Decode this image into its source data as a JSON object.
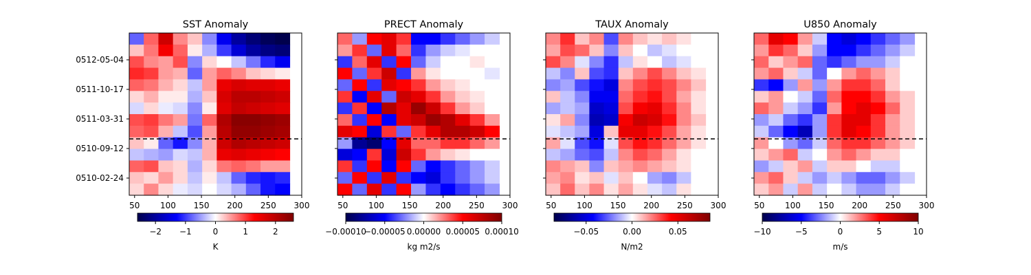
{
  "chart_data": {
    "type": "heatmap",
    "shared_y": {
      "ticks": [
        "0512-05-04",
        "0511-10-17",
        "0511-03-31",
        "0510-09-12",
        "0510-02-24"
      ],
      "reference_line_style": "dashed black"
    },
    "panels": [
      {
        "id": "sst",
        "title": "SST Anomaly",
        "xlim": [
          42,
          300
        ],
        "x_ticks": [
          50,
          100,
          150,
          200,
          250,
          300
        ],
        "data_extent_x": [
          42,
          282
        ],
        "colormap": "seismic",
        "vmin": -2.6,
        "vmax": 2.6,
        "colorbar_ticks": [
          -2,
          -1,
          0,
          1,
          2
        ],
        "colorbar_tick_labels": [
          "−2",
          "−1",
          "0",
          "1",
          "2"
        ],
        "colorbar_label": "K",
        "rows": [
          [
            -0.8,
            0.8,
            1.8,
            0.6,
            0.3,
            -0.6,
            -1.4,
            -2,
            -2.3,
            -2.5,
            -2.6
          ],
          [
            0.3,
            0.7,
            1.4,
            0.8,
            0.1,
            -0.4,
            -1,
            -1.6,
            -2,
            -2.2,
            -2.3
          ],
          [
            0.9,
            0.6,
            0.5,
            0.9,
            -0.6,
            0.2,
            0,
            -0.3,
            -0.7,
            -1.1,
            -1.4
          ],
          [
            1.1,
            1,
            0.5,
            0.4,
            -0.8,
            0.5,
            0.8,
            0.6,
            0.3,
            0.2,
            0.1
          ],
          [
            0.8,
            0.7,
            0.4,
            0.2,
            -0.3,
            0.5,
            1.5,
            1.7,
            1.6,
            1.6,
            1.5
          ],
          [
            0.2,
            0.4,
            0.1,
            0.1,
            -0.4,
            0.3,
            1.7,
            2,
            2,
            1.9,
            1.8
          ],
          [
            -0.2,
            0.2,
            -0.1,
            -0.2,
            -0.6,
            0.1,
            1.6,
            1.9,
            1.8,
            1.7,
            1.6
          ],
          [
            0.9,
            1,
            0.7,
            0.5,
            -0.7,
            0.8,
            2.1,
            2.5,
            2.5,
            2.4,
            2.3
          ],
          [
            0.8,
            0.9,
            0.4,
            -0.3,
            -0.9,
            0.5,
            2,
            2.4,
            2.4,
            2.3,
            2.2
          ],
          [
            0.3,
            0.1,
            -0.8,
            -1.2,
            -0.6,
            0.4,
            1.8,
            2.1,
            2,
            1.9,
            1.8
          ],
          [
            -0.3,
            -0.4,
            -0.5,
            -0.2,
            -0.3,
            0.4,
            1.5,
            1.6,
            1.5,
            1.4,
            1.3
          ],
          [
            0.8,
            0.9,
            0.3,
            0.2,
            -0.4,
            0.2,
            0.7,
            0.8,
            0.7,
            0.5,
            0.5
          ],
          [
            0.3,
            0.2,
            0.5,
            0.2,
            -0.3,
            0.1,
            -0.3,
            -0.8,
            -1.1,
            -1.2,
            -1.1
          ],
          [
            0.2,
            0.6,
            0.2,
            -0.1,
            -0.2,
            0,
            -0.2,
            -0.4,
            -0.8,
            -1.2,
            -1.3
          ]
        ]
      },
      {
        "id": "prect",
        "title": "PRECT Anomaly",
        "xlim": [
          42,
          300
        ],
        "x_ticks": [
          50,
          100,
          150,
          200,
          250,
          300
        ],
        "data_extent_x": [
          42,
          284
        ],
        "colormap": "seismic",
        "vmin": -0.0001,
        "vmax": 0.0001,
        "colorbar_ticks": [
          -0.0001,
          -5e-05,
          0,
          5e-05,
          0.0001
        ],
        "colorbar_tick_labels": [
          "−0.00010",
          "−0.00005",
          "0.00000",
          "0.00005",
          "0.00010"
        ],
        "colorbar_label": "kg m2/s",
        "rows": [
          [
            3e-05,
            -2e-05,
            5e-05,
            6e-05,
            4e-05,
            -5e-05,
            -5e-05,
            -4e-05,
            -3e-05,
            -2e-05,
            -1e-05
          ],
          [
            2e-05,
            4e-05,
            -3e-05,
            6e-05,
            3e-05,
            -4e-05,
            -2e-05,
            -1e-05,
            -5e-06,
            0,
            0
          ],
          [
            -4e-05,
            3e-05,
            6e-05,
            -4e-05,
            5e-05,
            -3e-05,
            -1e-05,
            0,
            0,
            5e-06,
            0
          ],
          [
            5e-05,
            -3e-05,
            4e-05,
            7e-05,
            -4e-05,
            2e-05,
            5e-06,
            0,
            0,
            0,
            -5e-06
          ],
          [
            -3e-05,
            5e-05,
            -4e-05,
            6e-05,
            5e-05,
            4e-05,
            2e-05,
            1e-05,
            5e-06,
            0,
            0
          ],
          [
            4e-05,
            -5e-05,
            6e-05,
            -3e-05,
            7e-05,
            6e-05,
            4e-05,
            2e-05,
            1e-05,
            5e-06,
            0
          ],
          [
            -4e-05,
            4e-05,
            -5e-05,
            8e-05,
            6e-05,
            9e-05,
            7e-05,
            4e-05,
            2e-05,
            1e-05,
            0
          ],
          [
            3e-05,
            -4e-05,
            5e-05,
            -5e-05,
            6e-05,
            7e-05,
            9e-05,
            8e-05,
            6e-05,
            4e-05,
            2e-05
          ],
          [
            6e-05,
            5e-05,
            -6e-05,
            4e-05,
            -3e-05,
            4e-05,
            6e-05,
            8e-05,
            8e-05,
            7e-05,
            5e-05
          ],
          [
            -2e-05,
            -8e-05,
            -9e-05,
            -5e-05,
            6e-05,
            3e-05,
            3e-05,
            4e-05,
            4e-05,
            3e-05,
            2e-05
          ],
          [
            -6e-05,
            -5e-05,
            4e-05,
            -6e-05,
            7e-05,
            4e-05,
            2e-05,
            1e-05,
            5e-06,
            0,
            0
          ],
          [
            4e-05,
            -4e-05,
            5e-05,
            -5e-05,
            5e-05,
            -3e-05,
            -5e-05,
            -4e-05,
            -3e-05,
            -2e-05,
            -1e-05
          ],
          [
            -3e-05,
            5e-05,
            -4e-05,
            6e-05,
            -4e-05,
            -5e-05,
            -6e-05,
            -4e-05,
            -3e-05,
            -2e-05,
            -1e-05
          ],
          [
            5e-05,
            -3e-05,
            6e-05,
            -4e-05,
            5e-05,
            -2e-05,
            -4e-05,
            -5e-05,
            -4e-05,
            -3e-05,
            -2e-05
          ]
        ]
      },
      {
        "id": "taux",
        "title": "TAUX Anomaly",
        "xlim": [
          42,
          300
        ],
        "x_ticks": [
          50,
          100,
          150,
          200,
          250,
          300
        ],
        "data_extent_x": [
          42,
          281
        ],
        "colormap": "seismic",
        "vmin": -0.085,
        "vmax": 0.085,
        "colorbar_ticks": [
          -0.05,
          0,
          0.05
        ],
        "colorbar_tick_labels": [
          "−0.05",
          "0.00",
          "0.05"
        ],
        "colorbar_label": "N/m2",
        "rows": [
          [
            0.02,
            0.035,
            0.01,
            0.02,
            -0.03,
            0.02,
            0.01,
            0.005,
            0.01,
            0.005,
            0
          ],
          [
            0.015,
            0.03,
            0.025,
            0.01,
            -0.02,
            0.01,
            0,
            -0.01,
            -0.005,
            0,
            0
          ],
          [
            0.03,
            0.02,
            -0.005,
            -0.02,
            -0.035,
            -0.01,
            0.005,
            0,
            -0.01,
            -0.005,
            0
          ],
          [
            -0.01,
            -0.02,
            0.01,
            -0.03,
            -0.035,
            0.01,
            0.02,
            0.03,
            0.02,
            0.01,
            0.005
          ],
          [
            -0.02,
            -0.015,
            -0.03,
            -0.04,
            -0.05,
            0.02,
            0.03,
            0.035,
            0.03,
            0.02,
            0.01
          ],
          [
            0.01,
            -0.01,
            -0.02,
            -0.045,
            -0.045,
            0.025,
            0.035,
            0.04,
            0.03,
            0.015,
            0.005
          ],
          [
            -0.015,
            -0.01,
            -0.015,
            -0.055,
            -0.05,
            0.03,
            0.045,
            0.05,
            0.035,
            0.02,
            0.005
          ],
          [
            0.005,
            0.015,
            -0.02,
            -0.06,
            -0.055,
            0.045,
            0.06,
            0.055,
            0.04,
            0.02,
            0.01
          ],
          [
            -0.005,
            -0.01,
            -0.015,
            -0.05,
            0.01,
            0.05,
            0.05,
            0.04,
            0.03,
            0.015,
            0.005
          ],
          [
            0.015,
            -0.005,
            -0.03,
            -0.04,
            -0.005,
            0.03,
            0.04,
            0.035,
            0.025,
            0.015,
            0.005
          ],
          [
            -0.01,
            -0.015,
            -0.025,
            -0.03,
            -0.01,
            0.02,
            0.03,
            0.025,
            0.015,
            0.005,
            0
          ],
          [
            0.02,
            0.015,
            0.01,
            -0.02,
            0.01,
            0.015,
            0.02,
            0.015,
            0.01,
            0.005,
            0
          ],
          [
            0.015,
            0.02,
            0.005,
            0.01,
            -0.005,
            0.01,
            0,
            -0.015,
            -0.02,
            -0.01,
            0
          ],
          [
            0.01,
            0.025,
            0.01,
            0.02,
            0.005,
            0.015,
            0.005,
            -0.005,
            -0.01,
            0.005,
            0
          ]
        ]
      },
      {
        "id": "u850",
        "title": "U850 Anomaly",
        "xlim": [
          42,
          300
        ],
        "x_ticks": [
          50,
          100,
          150,
          200,
          250,
          300
        ],
        "data_extent_x": [
          42,
          282
        ],
        "colormap": "seismic",
        "vmin": -10,
        "vmax": 10,
        "colorbar_ticks": [
          -10,
          -5,
          0,
          5,
          10
        ],
        "colorbar_tick_labels": [
          "−10",
          "−5",
          "0",
          "5",
          "10"
        ],
        "colorbar_label": "m/s",
        "rows": [
          [
            3,
            6,
            5,
            2,
            -1,
            -5,
            -6,
            -5,
            -4,
            -3,
            -2
          ],
          [
            2,
            4,
            3,
            1,
            -2,
            -5,
            -5,
            -4,
            -3,
            -2,
            -1
          ],
          [
            3,
            1,
            2,
            3,
            -3,
            -4,
            -3,
            -2,
            -2,
            -1,
            0
          ],
          [
            2,
            3,
            1,
            -1,
            -3,
            0,
            2,
            3,
            2,
            1,
            0
          ],
          [
            -4,
            -5,
            -2,
            2,
            -2,
            2,
            4,
            4,
            3,
            1,
            0
          ],
          [
            1,
            2,
            0,
            -1,
            -3,
            3,
            5,
            5,
            4,
            2,
            1
          ],
          [
            3,
            2,
            -1,
            -2,
            -4,
            2,
            5,
            6,
            5,
            3,
            1
          ],
          [
            -2,
            -1,
            -3,
            -4,
            -2,
            4,
            6,
            6,
            4,
            2,
            1
          ],
          [
            -1,
            -3,
            -5,
            -7,
            -2,
            4,
            6,
            5,
            4,
            2,
            1
          ],
          [
            2,
            0,
            -2,
            -3,
            -1,
            3,
            4,
            4,
            3,
            2,
            1
          ],
          [
            1,
            2,
            3,
            -1,
            0,
            2,
            3,
            2,
            1,
            1,
            0
          ],
          [
            -2,
            -1,
            1,
            2,
            -1,
            1,
            1,
            0,
            -1,
            -1,
            0
          ],
          [
            2,
            3,
            1,
            -1,
            -2,
            -1,
            -2,
            -3,
            -3,
            -2,
            -1
          ],
          [
            1,
            2,
            -1,
            2,
            -1,
            0,
            -1,
            -2,
            -2,
            -1,
            0
          ]
        ]
      }
    ]
  }
}
